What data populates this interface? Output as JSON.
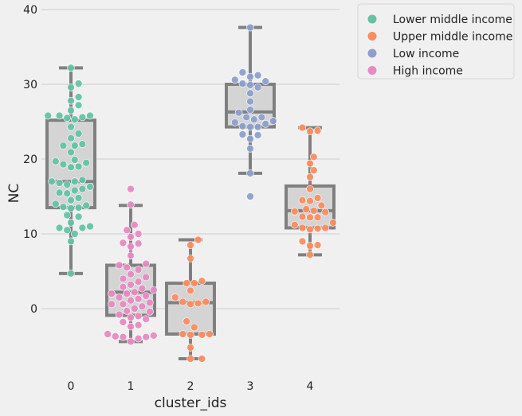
{
  "chart_data": {
    "type": "box-swarm",
    "xlabel": "cluster_ids",
    "ylabel": "NC",
    "ylim": [
      -9,
      40
    ],
    "yticks": [
      0,
      10,
      20,
      30,
      40
    ],
    "categories": [
      "0",
      "1",
      "2",
      "3",
      "4"
    ],
    "grid": "horizontal",
    "legend_position": "upper-right outside",
    "legend": [
      {
        "name": "Lower middle income",
        "color": "#66c2a5"
      },
      {
        "name": "Upper middle income",
        "color": "#fc8d62"
      },
      {
        "name": "Low income",
        "color": "#8da0cb"
      },
      {
        "name": "High income",
        "color": "#e78ac3"
      }
    ],
    "boxes": [
      {
        "category": "0",
        "whisker_low": 4.7,
        "q1": 13.5,
        "median": 17.0,
        "q3": 25.2,
        "whisker_high": 32.2,
        "outliers": []
      },
      {
        "category": "1",
        "whisker_low": -4.4,
        "q1": -0.9,
        "median": 2.2,
        "q3": 5.8,
        "whisker_high": 13.8,
        "outliers": [
          16.0
        ]
      },
      {
        "category": "2",
        "whisker_low": -6.7,
        "q1": -3.4,
        "median": 0.8,
        "q3": 3.4,
        "whisker_high": 9.2,
        "outliers": []
      },
      {
        "category": "3",
        "whisker_low": 18.1,
        "q1": 24.3,
        "median": 26.3,
        "q3": 30.0,
        "whisker_high": 37.6,
        "outliers": [
          15.0
        ]
      },
      {
        "category": "4",
        "whisker_low": 7.2,
        "q1": 10.8,
        "median": 13.1,
        "q3": 16.4,
        "whisker_high": 24.2,
        "outliers": []
      }
    ],
    "points": [
      {
        "category": "0",
        "group": "Lower middle income",
        "values": [
          4.7,
          9.0,
          10.0,
          10.5,
          10.8,
          10.8,
          11.0,
          11.5,
          12.3,
          12.5,
          13.4,
          13.5,
          13.6,
          13.8,
          14.0,
          14.5,
          14.8,
          15.4,
          15.5,
          15.8,
          16.0,
          16.3,
          16.6,
          16.8,
          17.0,
          17.0,
          17.2,
          18.9,
          19.0,
          19.3,
          19.5,
          19.7,
          19.9,
          20.9,
          21.8,
          21.8,
          22.0,
          22.8,
          23.4,
          24.3,
          25.3,
          25.5,
          25.6,
          25.8,
          25.8,
          25.8,
          26.5,
          27.2,
          27.8,
          28.3,
          29.6,
          30.1,
          32.2
        ]
      },
      {
        "category": "1",
        "group": "High income",
        "values": [
          -4.4,
          -4.0,
          -3.8,
          -3.8,
          -3.7,
          -3.6,
          -3.4,
          -2.4,
          -2.2,
          -1.8,
          -1.4,
          -1.2,
          -1.0,
          -0.8,
          -0.4,
          -0.3,
          0.0,
          0.3,
          0.6,
          0.6,
          0.8,
          1.1,
          1.3,
          1.5,
          1.7,
          2.0,
          2.0,
          2.2,
          2.5,
          2.7,
          2.9,
          3.2,
          3.6,
          4.0,
          4.2,
          4.6,
          5.2,
          5.5,
          5.8,
          6.0,
          7.1,
          8.3,
          8.7,
          8.8,
          9.6,
          10.0,
          10.5,
          11.2,
          13.9,
          16.0
        ]
      },
      {
        "category": "2",
        "group": "Upper middle income",
        "values": [
          -6.7,
          -6.7,
          -5.2,
          -3.5,
          -3.5,
          -3.4,
          -3.4,
          -2.5,
          -1.7,
          0.6,
          0.7,
          0.9,
          0.9,
          1.5,
          2.4,
          3.4,
          3.4,
          3.7,
          6.7,
          8.5,
          9.2
        ]
      },
      {
        "category": "3",
        "group": "Low income",
        "values": [
          15.0,
          18.1,
          21.4,
          22.7,
          23.2,
          23.3,
          24.3,
          24.3,
          24.4,
          24.7,
          24.9,
          25.1,
          25.3,
          25.6,
          25.6,
          26.2,
          26.6,
          27.7,
          28.8,
          29.6,
          29.9,
          30.1,
          30.4,
          30.6,
          31.0,
          31.2,
          31.6,
          37.6
        ]
      },
      {
        "category": "4",
        "group": "Upper middle income",
        "values": [
          7.2,
          8.4,
          8.5,
          9.0,
          10.6,
          10.7,
          10.8,
          10.8,
          11.2,
          11.5,
          12.2,
          12.2,
          12.3,
          12.9,
          13.0,
          13.1,
          13.3,
          13.8,
          14.4,
          14.5,
          14.8,
          16.0,
          17.6,
          18.5,
          19.4,
          20.3,
          23.7,
          23.8,
          24.2
        ]
      }
    ]
  }
}
